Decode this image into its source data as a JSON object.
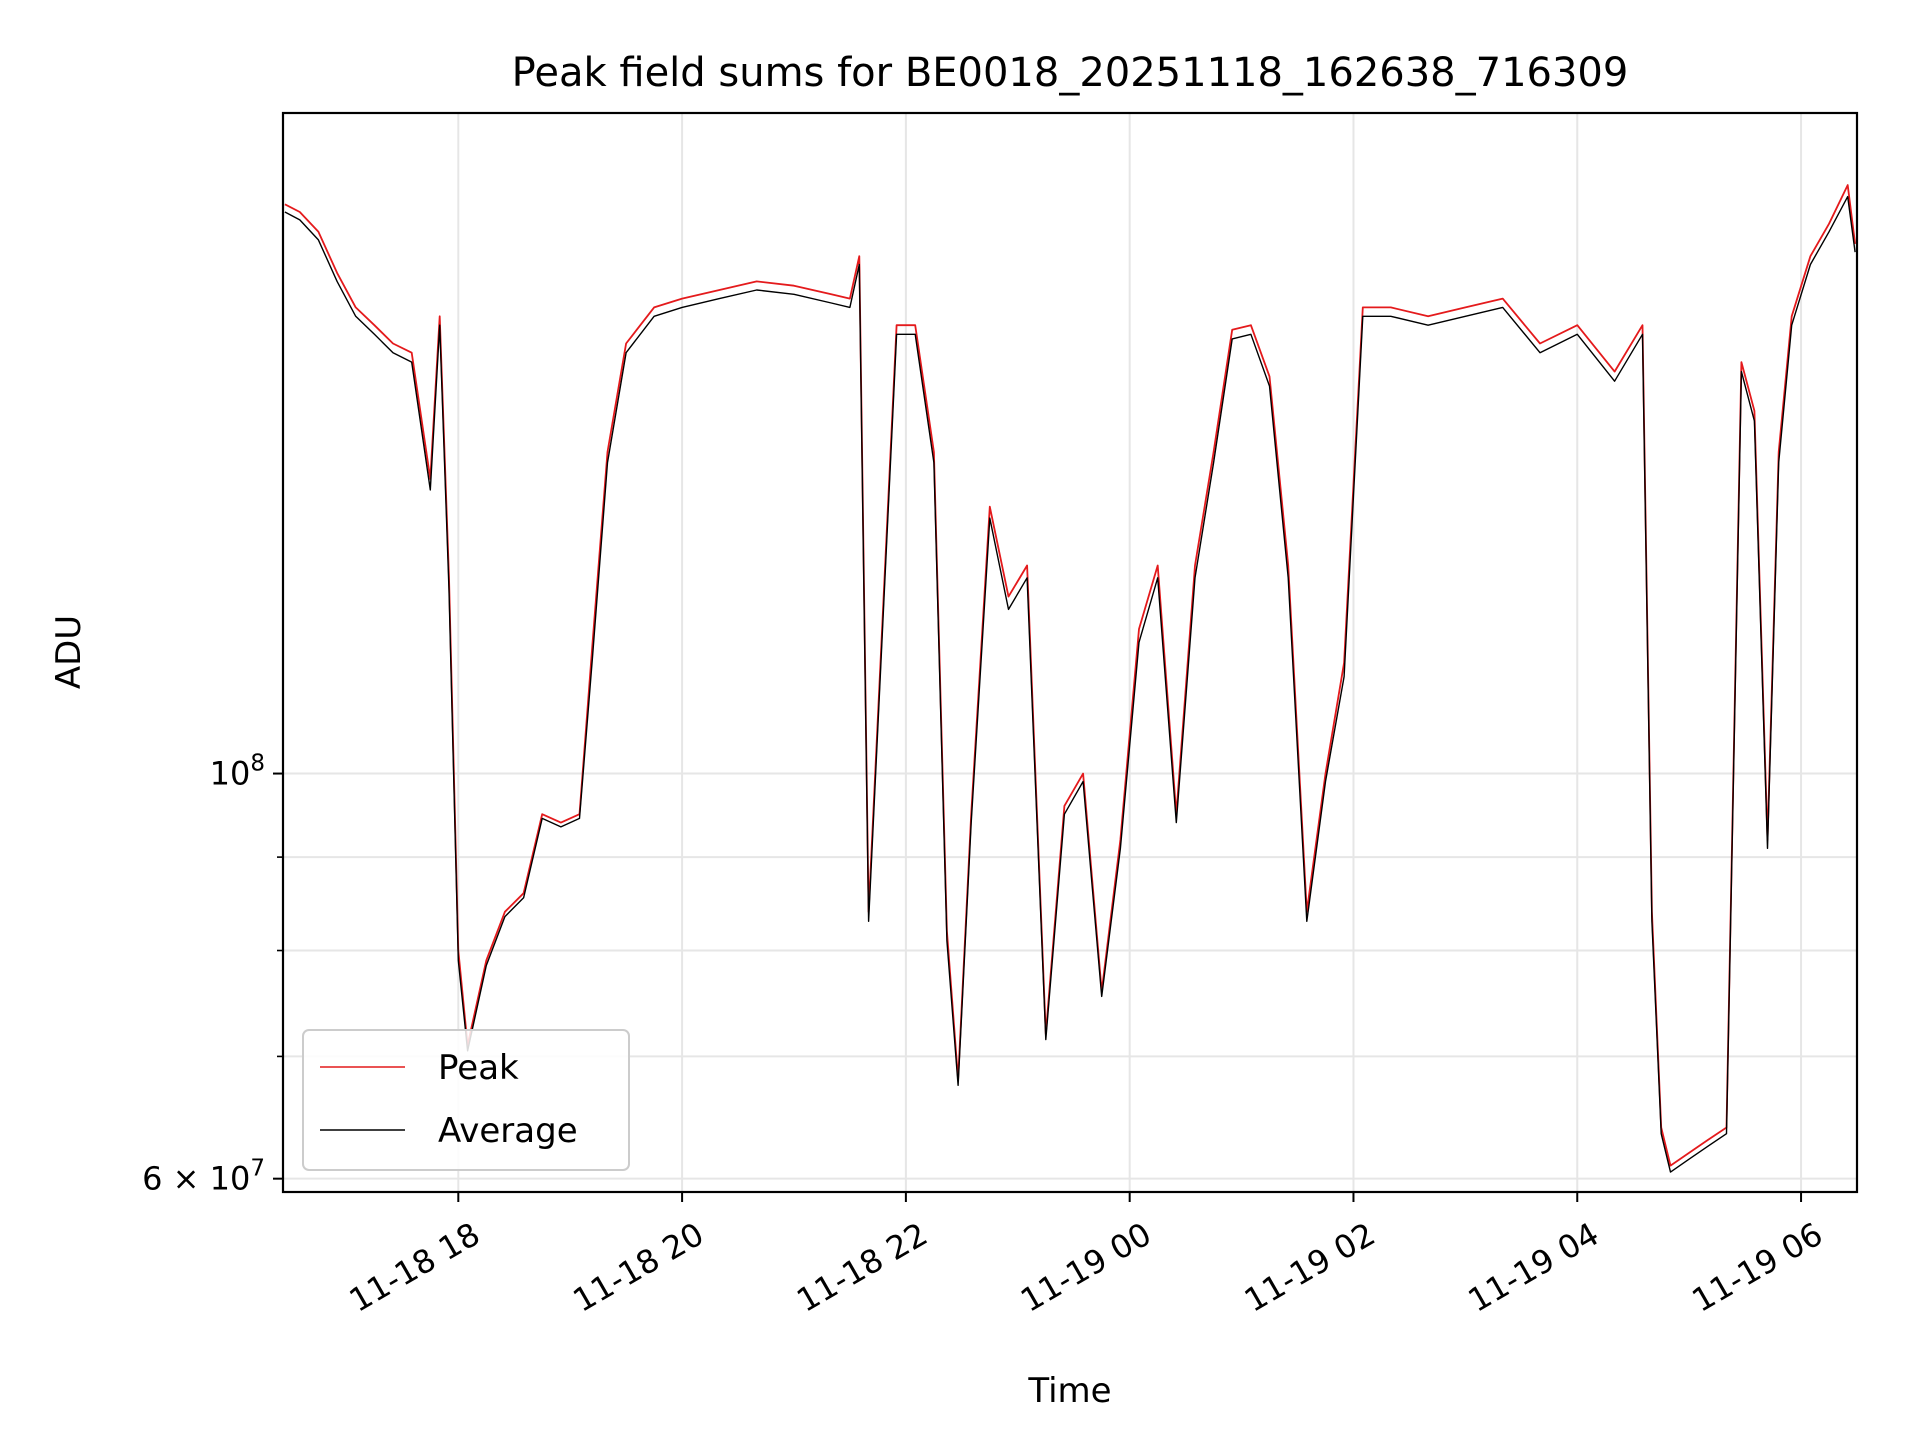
{
  "chart_data": {
    "type": "line",
    "title": "Peak field sums for BE0018_20251118_162638_716309",
    "xlabel": "Time",
    "ylabel": "ADU",
    "yscale": "log",
    "ylim": [
      59000000,
      230000000
    ],
    "xlim": [
      "2025-11-18 16:26",
      "2025-11-19 06:30"
    ],
    "x_ticks": [
      "11-18 18",
      "11-18 20",
      "11-18 22",
      "11-19 00",
      "11-19 02",
      "11-19 04",
      "11-19 06"
    ],
    "y_ticks": [
      {
        "value": 100000000,
        "base": "10",
        "exp": "8"
      },
      {
        "value": 60000000,
        "base": "6 × 10",
        "exp": "7"
      }
    ],
    "y_minor_ticks": [
      70000000,
      80000000,
      90000000
    ],
    "grid": true,
    "legend": "lower-left",
    "colors": {
      "peak": "#e41a1c",
      "average": "#000000",
      "grid": "#e6e6e6"
    },
    "series": [
      {
        "name": "Peak",
        "color": "#e41a1c",
        "x": [
          "2025-11-18 16:27",
          "2025-11-18 16:35",
          "2025-11-18 16:45",
          "2025-11-18 16:55",
          "2025-11-18 17:05",
          "2025-11-18 17:15",
          "2025-11-18 17:25",
          "2025-11-18 17:35",
          "2025-11-18 17:45",
          "2025-11-18 17:50",
          "2025-11-18 17:55",
          "2025-11-18 18:00",
          "2025-11-18 18:05",
          "2025-11-18 18:15",
          "2025-11-18 18:25",
          "2025-11-18 18:35",
          "2025-11-18 18:45",
          "2025-11-18 18:55",
          "2025-11-18 19:05",
          "2025-11-18 19:12",
          "2025-11-18 19:20",
          "2025-11-18 19:30",
          "2025-11-18 19:45",
          "2025-11-18 20:00",
          "2025-11-18 20:20",
          "2025-11-18 20:40",
          "2025-11-18 21:00",
          "2025-11-18 21:20",
          "2025-11-18 21:30",
          "2025-11-18 21:35",
          "2025-11-18 21:40",
          "2025-11-18 21:55",
          "2025-11-18 22:05",
          "2025-11-18 22:15",
          "2025-11-18 22:22",
          "2025-11-18 22:28",
          "2025-11-18 22:35",
          "2025-11-18 22:45",
          "2025-11-18 22:55",
          "2025-11-18 23:05",
          "2025-11-18 23:15",
          "2025-11-18 23:25",
          "2025-11-18 23:35",
          "2025-11-18 23:45",
          "2025-11-18 23:55",
          "2025-11-19 00:05",
          "2025-11-19 00:15",
          "2025-11-19 00:25",
          "2025-11-19 00:35",
          "2025-11-19 00:45",
          "2025-11-19 00:55",
          "2025-11-19 01:05",
          "2025-11-19 01:15",
          "2025-11-19 01:25",
          "2025-11-19 01:35",
          "2025-11-19 01:45",
          "2025-11-19 01:55",
          "2025-11-19 02:05",
          "2025-11-19 02:20",
          "2025-11-19 02:40",
          "2025-11-19 03:00",
          "2025-11-19 03:20",
          "2025-11-19 03:40",
          "2025-11-19 04:00",
          "2025-11-19 04:20",
          "2025-11-19 04:35",
          "2025-11-19 04:40",
          "2025-11-19 04:45",
          "2025-11-19 04:50",
          "2025-11-19 05:00",
          "2025-11-19 05:10",
          "2025-11-19 05:20",
          "2025-11-19 05:28",
          "2025-11-19 05:35",
          "2025-11-19 05:42",
          "2025-11-19 05:48",
          "2025-11-19 05:55",
          "2025-11-19 06:05",
          "2025-11-19 06:15",
          "2025-11-19 06:25",
          "2025-11-19 06:29"
        ],
        "values": [
          205000000,
          203000000,
          198000000,
          188000000,
          180000000,
          176000000,
          172000000,
          170000000,
          145000000,
          178000000,
          128000000,
          80000000,
          71000000,
          79000000,
          84000000,
          86000000,
          95000000,
          94000000,
          95000000,
          118000000,
          150000000,
          172000000,
          180000000,
          182000000,
          184000000,
          186000000,
          185000000,
          183000000,
          182000000,
          192000000,
          84000000,
          176000000,
          176000000,
          150000000,
          82000000,
          68000000,
          95000000,
          140000000,
          125000000,
          130000000,
          72000000,
          96000000,
          100000000,
          76000000,
          92000000,
          120000000,
          130000000,
          95000000,
          130000000,
          150000000,
          175000000,
          176000000,
          165000000,
          130000000,
          84000000,
          100000000,
          115000000,
          180000000,
          180000000,
          178000000,
          180000000,
          182000000,
          172000000,
          176000000,
          166000000,
          176000000,
          84000000,
          64000000,
          61000000,
          62000000,
          63000000,
          64000000,
          168000000,
          158000000,
          92000000,
          150000000,
          178000000,
          192000000,
          200000000,
          210000000,
          195000000
        ]
      },
      {
        "name": "Average",
        "color": "#000000",
        "x": [
          "2025-11-18 16:27",
          "2025-11-18 16:35",
          "2025-11-18 16:45",
          "2025-11-18 16:55",
          "2025-11-18 17:05",
          "2025-11-18 17:15",
          "2025-11-18 17:25",
          "2025-11-18 17:35",
          "2025-11-18 17:45",
          "2025-11-18 17:50",
          "2025-11-18 17:55",
          "2025-11-18 18:00",
          "2025-11-18 18:05",
          "2025-11-18 18:15",
          "2025-11-18 18:25",
          "2025-11-18 18:35",
          "2025-11-18 18:45",
          "2025-11-18 18:55",
          "2025-11-18 19:05",
          "2025-11-18 19:12",
          "2025-11-18 19:20",
          "2025-11-18 19:30",
          "2025-11-18 19:45",
          "2025-11-18 20:00",
          "2025-11-18 20:20",
          "2025-11-18 20:40",
          "2025-11-18 21:00",
          "2025-11-18 21:20",
          "2025-11-18 21:30",
          "2025-11-18 21:35",
          "2025-11-18 21:40",
          "2025-11-18 21:55",
          "2025-11-18 22:05",
          "2025-11-18 22:15",
          "2025-11-18 22:22",
          "2025-11-18 22:28",
          "2025-11-18 22:35",
          "2025-11-18 22:45",
          "2025-11-18 22:55",
          "2025-11-18 23:05",
          "2025-11-18 23:15",
          "2025-11-18 23:25",
          "2025-11-18 23:35",
          "2025-11-18 23:45",
          "2025-11-18 23:55",
          "2025-11-19 00:05",
          "2025-11-19 00:15",
          "2025-11-19 00:25",
          "2025-11-19 00:35",
          "2025-11-19 00:45",
          "2025-11-19 00:55",
          "2025-11-19 01:05",
          "2025-11-19 01:15",
          "2025-11-19 01:25",
          "2025-11-19 01:35",
          "2025-11-19 01:45",
          "2025-11-19 01:55",
          "2025-11-19 02:05",
          "2025-11-19 02:20",
          "2025-11-19 02:40",
          "2025-11-19 03:00",
          "2025-11-19 03:20",
          "2025-11-19 03:40",
          "2025-11-19 04:00",
          "2025-11-19 04:20",
          "2025-11-19 04:35",
          "2025-11-19 04:40",
          "2025-11-19 04:45",
          "2025-11-19 04:50",
          "2025-11-19 05:00",
          "2025-11-19 05:10",
          "2025-11-19 05:20",
          "2025-11-19 05:28",
          "2025-11-19 05:35",
          "2025-11-19 05:42",
          "2025-11-19 05:48",
          "2025-11-19 05:55",
          "2025-11-19 06:05",
          "2025-11-19 06:15",
          "2025-11-19 06:25",
          "2025-11-19 06:29"
        ],
        "values": [
          203000000,
          201000000,
          196000000,
          186000000,
          178000000,
          174000000,
          170000000,
          168000000,
          143000000,
          176000000,
          126000000,
          79000000,
          70500000,
          78500000,
          83500000,
          85500000,
          94500000,
          93500000,
          94500000,
          116000000,
          148000000,
          170000000,
          178000000,
          180000000,
          182000000,
          184000000,
          183000000,
          181000000,
          180000000,
          190000000,
          83000000,
          174000000,
          174000000,
          148000000,
          81000000,
          67500000,
          94000000,
          138000000,
          123000000,
          128000000,
          71500000,
          95000000,
          99000000,
          75500000,
          91000000,
          118000000,
          128000000,
          94000000,
          128000000,
          148000000,
          173000000,
          174000000,
          163000000,
          128000000,
          83000000,
          99000000,
          113000000,
          178000000,
          178000000,
          176000000,
          178000000,
          180000000,
          170000000,
          174000000,
          164000000,
          174000000,
          83000000,
          63500000,
          60500000,
          61500000,
          62500000,
          63500000,
          166000000,
          156000000,
          91000000,
          148000000,
          176000000,
          190000000,
          198000000,
          207000000,
          193000000
        ]
      }
    ]
  }
}
